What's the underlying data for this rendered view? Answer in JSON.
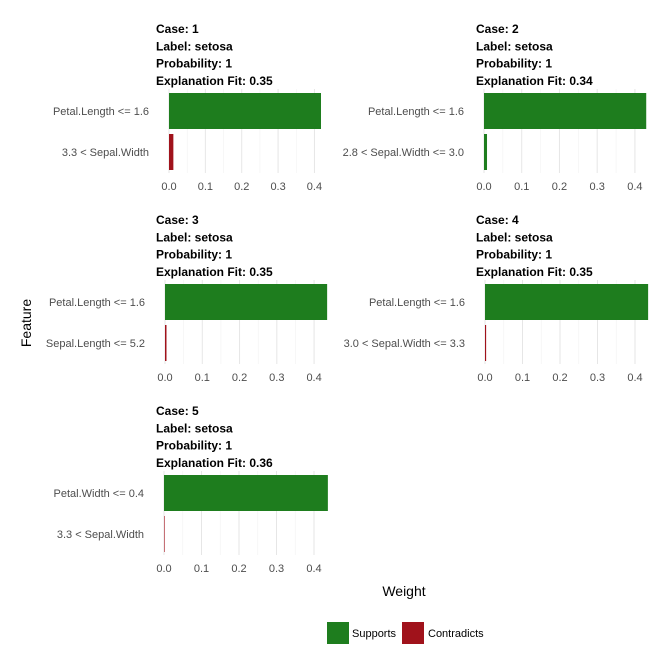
{
  "chart_data": {
    "type": "bar",
    "orientation": "horizontal",
    "xlabel": "Weight",
    "ylabel": "Feature",
    "xlim": [
      0,
      0.44
    ],
    "x_ticks": [
      "0.0",
      "0.1",
      "0.2",
      "0.3",
      "0.4"
    ],
    "grid": true,
    "legend": {
      "position": "bottom",
      "entries": [
        {
          "name": "Supports",
          "color": "#1e7d1e"
        },
        {
          "name": "Contradicts",
          "color": "#a0121b"
        }
      ]
    },
    "panels": [
      {
        "case": "Case: 1",
        "label": "Label: setosa",
        "probability": "Probability: 1",
        "fit": "Explanation Fit: 0.35",
        "bars": [
          {
            "feature": "Petal.Length <= 1.6",
            "weight": 0.418,
            "type": "Supports"
          },
          {
            "feature": "3.3 < Sepal.Width",
            "weight": 0.012,
            "type": "Contradicts"
          }
        ]
      },
      {
        "case": "Case: 2",
        "label": "Label: setosa",
        "probability": "Probability: 1",
        "fit": "Explanation Fit: 0.34",
        "bars": [
          {
            "feature": "Petal.Length <= 1.6",
            "weight": 0.43,
            "type": "Supports"
          },
          {
            "feature": "2.8 < Sepal.Width <= 3.0",
            "weight": 0.008,
            "type": "Supports"
          }
        ]
      },
      {
        "case": "Case: 3",
        "label": "Label: setosa",
        "probability": "Probability: 1",
        "fit": "Explanation Fit: 0.35",
        "bars": [
          {
            "feature": "Petal.Length <= 1.6",
            "weight": 0.435,
            "type": "Supports"
          },
          {
            "feature": "Sepal.Length <= 5.2",
            "weight": 0.004,
            "type": "Contradicts"
          }
        ]
      },
      {
        "case": "Case: 4",
        "label": "Label: setosa",
        "probability": "Probability: 1",
        "fit": "Explanation Fit: 0.35",
        "bars": [
          {
            "feature": "Petal.Length <= 1.6",
            "weight": 0.435,
            "type": "Supports"
          },
          {
            "feature": "3.0 < Sepal.Width <= 3.3",
            "weight": 0.003,
            "type": "Contradicts"
          }
        ]
      },
      {
        "case": "Case: 5",
        "label": "Label: setosa",
        "probability": "Probability: 1",
        "fit": "Explanation Fit: 0.36",
        "bars": [
          {
            "feature": "Petal.Width <= 0.4",
            "weight": 0.437,
            "type": "Supports"
          },
          {
            "feature": "3.3 < Sepal.Width",
            "weight": 0.001,
            "type": "Contradicts"
          }
        ]
      }
    ]
  }
}
